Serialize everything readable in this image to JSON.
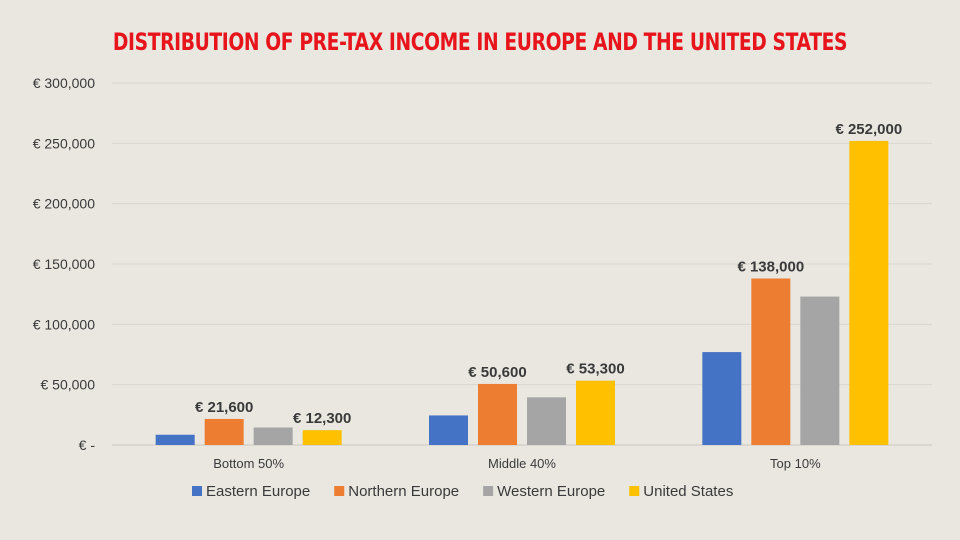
{
  "chart_data": {
    "type": "bar",
    "title": "DISTRIBUTION OF PRE-TAX INCOME IN EUROPE AND THE UNITED STATES",
    "title_color": "#E8141B",
    "categories": [
      "Bottom 50%",
      "Middle 40%",
      "Top 10%"
    ],
    "series": [
      {
        "name": "Eastern Europe",
        "color": "#4472C4",
        "values": [
          8500,
          24500,
          77000
        ],
        "labels": [
          "",
          "",
          ""
        ]
      },
      {
        "name": "Northern Europe",
        "color": "#ED7D31",
        "values": [
          21600,
          50600,
          138000
        ],
        "labels": [
          "€ 21,600",
          "€ 50,600",
          "€ 138,000"
        ]
      },
      {
        "name": "Western Europe",
        "color": "#A5A5A5",
        "values": [
          14500,
          39500,
          123000
        ],
        "labels": [
          "",
          "",
          ""
        ]
      },
      {
        "name": "United States",
        "color": "#FFC000",
        "values": [
          12300,
          53300,
          252000
        ],
        "labels": [
          "€ 12,300",
          "€ 53,300",
          "€ 252,000"
        ]
      }
    ],
    "ylim": [
      0,
      300000
    ],
    "yticks": [
      {
        "value": 0,
        "label": "€ -"
      },
      {
        "value": 50000,
        "label": "€ 50,000"
      },
      {
        "value": 100000,
        "label": "€ 100,000"
      },
      {
        "value": 150000,
        "label": "€ 150,000"
      },
      {
        "value": 200000,
        "label": "€ 200,000"
      },
      {
        "value": 250000,
        "label": "€ 250,000"
      },
      {
        "value": 300000,
        "label": "€ 300,000"
      }
    ],
    "grid": true,
    "legend_position": "bottom"
  }
}
